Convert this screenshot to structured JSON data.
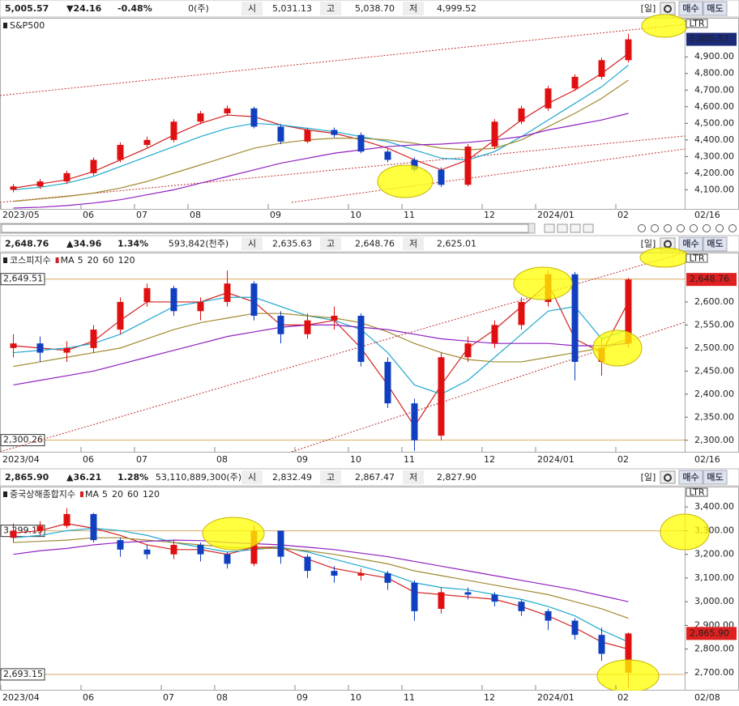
{
  "panels": [
    {
      "header": {
        "price": "5,005.57",
        "change": "▼24.16",
        "rate": "-0.48%",
        "volume": "0(주)",
        "open_label": "시",
        "open": "5,031.13",
        "high_label": "고",
        "high": "5,038.70",
        "low_label": "저",
        "low": "4,999.52",
        "period": "[일]",
        "buy": "매수",
        "sell": "매도",
        "color": "#1a1acc",
        "box_color": "#1c2a7a"
      },
      "chart_data": {
        "type": "candlestick",
        "title": "S&P500",
        "scale_mode": "LTR",
        "last_date": "02/16",
        "categories": [
          "2023/05",
          null,
          null,
          "06",
          null,
          "07",
          null,
          "08",
          null,
          null,
          "09",
          null,
          null,
          "10",
          null,
          "11",
          null,
          null,
          "12",
          null,
          "2024/01",
          null,
          null,
          "02"
        ],
        "open": [
          4100,
          4120,
          4150,
          4200,
          4280,
          4370,
          4400,
          4510,
          4560,
          4590,
          4480,
          4390,
          4460,
          4430,
          4330,
          4280,
          4220,
          4130,
          4360,
          4510,
          4590,
          4710,
          4780,
          4880
        ],
        "high": [
          4135,
          4165,
          4215,
          4295,
          4385,
          4420,
          4525,
          4575,
          4607,
          4600,
          4495,
          4475,
          4475,
          4445,
          4345,
          4295,
          4235,
          4375,
          4525,
          4605,
          4725,
          4795,
          4895,
          5038.7
        ],
        "low": [
          4085,
          4105,
          4135,
          4185,
          4265,
          4355,
          4385,
          4495,
          4545,
          4470,
          4375,
          4380,
          4415,
          4320,
          4265,
          4205,
          4117,
          4120,
          4345,
          4495,
          4575,
          4695,
          4765,
          4865
        ],
        "close": [
          4120,
          4150,
          4200,
          4280,
          4370,
          4400,
          4510,
          4560,
          4590,
          4480,
          4390,
          4460,
          4430,
          4330,
          4280,
          4220,
          4130,
          4360,
          4510,
          4590,
          4710,
          4780,
          4880,
          5005.57
        ],
        "series": [
          {
            "color": "#d42020",
            "values": [
              4110,
              4135,
              4160,
              4210,
              4280,
              4350,
              4430,
              4500,
              4550,
              4540,
              4490,
              4460,
              4440,
              4400,
              4350,
              4280,
              4220,
              4280,
              4400,
              4520,
              4620,
              4700,
              4800,
              4920
            ]
          },
          {
            "color": "#20a8d0",
            "values": [
              4100,
              4115,
              4140,
              4180,
              4240,
              4300,
              4360,
              4420,
              4470,
              4500,
              4490,
              4470,
              4450,
              4420,
              4390,
              4340,
              4290,
              4280,
              4330,
              4420,
              4520,
              4620,
              4720,
              4850
            ]
          },
          {
            "color": "#a08a30",
            "values": [
              4030,
              4045,
              4060,
              4080,
              4110,
              4150,
              4200,
              4250,
              4300,
              4350,
              4380,
              4400,
              4410,
              4410,
              4400,
              4380,
              4350,
              4340,
              4350,
              4400,
              4480,
              4560,
              4650,
              4760
            ]
          },
          {
            "color": "#9020c0",
            "values": [
              3990,
              3995,
              4005,
              4020,
              4040,
              4070,
              4100,
              4140,
              4180,
              4220,
              4260,
              4290,
              4320,
              4340,
              4360,
              4370,
              4375,
              4385,
              4400,
              4420,
              4460,
              4490,
              4520,
              4560
            ]
          }
        ],
        "up_color": "#e01010",
        "down_color": "#1040c0",
        "ylim": [
          3985,
          5135
        ],
        "yticks": [
          {
            "value": 4100,
            "label": "4,100.00"
          },
          {
            "value": 4200,
            "label": "4,200.00"
          },
          {
            "value": 4300,
            "label": "4,300.00"
          },
          {
            "value": 4400,
            "label": "4,400.00"
          },
          {
            "value": 4500,
            "label": "4,500.00"
          },
          {
            "value": 4600,
            "label": "4,600.00"
          },
          {
            "value": 4700,
            "label": "4,700.00"
          },
          {
            "value": 4800,
            "label": "4,800.00"
          },
          {
            "value": 4900,
            "label": "4,900.00"
          }
        ],
        "levels": []
      }
    },
    {
      "header": {
        "price": "2,648.76",
        "change": "▲34.96",
        "rate": "1.34%",
        "volume": "593,842(천주)",
        "open_label": "시",
        "open": "2,635.63",
        "high_label": "고",
        "high": "2,648.76",
        "low_label": "저",
        "low": "2,625.01",
        "period": "[일]",
        "buy": "매수",
        "sell": "매도",
        "color": "#e01010",
        "box_color": "#e02020"
      },
      "chart_data": {
        "type": "candlestick",
        "title": "코스피지수",
        "ma_label": "MA",
        "scale_mode": "LTR",
        "last_date": "02/16",
        "categories": [
          "2023/04",
          null,
          null,
          "06",
          null,
          "07",
          null,
          null,
          "08",
          null,
          null,
          "09",
          null,
          "10",
          null,
          "11",
          null,
          null,
          "12",
          null,
          "2024/01",
          null,
          null,
          "02"
        ],
        "open": [
          2500,
          2510,
          2490,
          2500,
          2540,
          2600,
          2630,
          2580,
          2600,
          2640,
          2570,
          2530,
          2560,
          2570,
          2470,
          2380,
          2310,
          2480,
          2510,
          2550,
          2600,
          2660,
          2470,
          2510
        ],
        "high": [
          2530,
          2525,
          2515,
          2550,
          2610,
          2640,
          2635,
          2610,
          2668,
          2645,
          2580,
          2575,
          2590,
          2575,
          2480,
          2390,
          2490,
          2525,
          2560,
          2610,
          2669,
          2665,
          2520,
          2652
        ],
        "low": [
          2480,
          2470,
          2470,
          2490,
          2530,
          2590,
          2570,
          2560,
          2590,
          2560,
          2510,
          2520,
          2540,
          2460,
          2370,
          2277,
          2300,
          2470,
          2500,
          2540,
          2590,
          2430,
          2440,
          2500
        ],
        "close": [
          2510,
          2490,
          2500,
          2540,
          2600,
          2630,
          2580,
          2600,
          2640,
          2570,
          2530,
          2560,
          2570,
          2470,
          2380,
          2300,
          2480,
          2510,
          2550,
          2600,
          2660,
          2470,
          2500,
          2648.76
        ],
        "series": [
          {
            "name": "5",
            "color": "#d42020",
            "values": [
              2505,
              2500,
              2495,
              2515,
              2560,
              2600,
              2600,
              2600,
              2620,
              2600,
              2550,
              2550,
              2560,
              2500,
              2420,
              2330,
              2420,
              2500,
              2540,
              2590,
              2640,
              2520,
              2490,
              2600
            ]
          },
          {
            "name": "20",
            "color": "#20a8d0",
            "values": [
              2490,
              2495,
              2500,
              2510,
              2530,
              2560,
              2590,
              2600,
              2610,
              2610,
              2590,
              2570,
              2560,
              2540,
              2490,
              2420,
              2400,
              2430,
              2480,
              2530,
              2580,
              2590,
              2520,
              2540
            ]
          },
          {
            "name": "60",
            "color": "#a08a30",
            "values": [
              2460,
              2470,
              2480,
              2490,
              2500,
              2520,
              2540,
              2555,
              2565,
              2575,
              2575,
              2570,
              2565,
              2555,
              2535,
              2510,
              2490,
              2475,
              2470,
              2470,
              2480,
              2490,
              2500,
              2520
            ]
          },
          {
            "name": "120",
            "color": "#9020c0",
            "values": [
              2420,
              2430,
              2440,
              2450,
              2465,
              2480,
              2495,
              2510,
              2525,
              2535,
              2545,
              2550,
              2550,
              2545,
              2540,
              2530,
              2520,
              2515,
              2510,
              2510,
              2510,
              2505,
              2505,
              2510
            ]
          }
        ],
        "up_color": "#e01010",
        "down_color": "#1040c0",
        "ylim": [
          2275,
          2707
        ],
        "yticks": [
          {
            "value": 2300,
            "label": "2,300.00"
          },
          {
            "value": 2350,
            "label": "2,350.00"
          },
          {
            "value": 2400,
            "label": "2,400.00"
          },
          {
            "value": 2450,
            "label": "2,450.00"
          },
          {
            "value": 2500,
            "label": "2,500.00"
          },
          {
            "value": 2550,
            "label": "2,550.00"
          },
          {
            "value": 2600,
            "label": "2,600.00"
          }
        ],
        "levels": [
          {
            "value": 2649.51,
            "label": "2,649.51"
          },
          {
            "value": 2300.26,
            "label": "2,300.26"
          }
        ]
      }
    },
    {
      "header": {
        "price": "2,865.90",
        "change": "▲36.21",
        "rate": "1.28%",
        "volume": "53,110,889,300(주)",
        "open_label": "시",
        "open": "2,832.49",
        "high_label": "고",
        "high": "2,867.47",
        "low_label": "저",
        "low": "2,827.90",
        "period": "[일]",
        "buy": "매수",
        "sell": "매도",
        "color": "#e01010",
        "box_color": "#e02020"
      },
      "chart_data": {
        "type": "candlestick",
        "title": "중국상해종합지수",
        "ma_label": "MA",
        "scale_mode": "LTR",
        "last_date": "02/08",
        "categories": [
          "2023/04",
          null,
          null,
          "06",
          null,
          null,
          "07",
          null,
          "08",
          null,
          null,
          "09",
          null,
          "10",
          null,
          "11",
          null,
          null,
          "12",
          null,
          "2024/01",
          null,
          null,
          "02"
        ],
        "open": [
          3270,
          3300,
          3320,
          3370,
          3260,
          3220,
          3200,
          3240,
          3200,
          3160,
          3300,
          3190,
          3130,
          3110,
          3120,
          3080,
          2970,
          3040,
          3030,
          3000,
          2960,
          2920,
          2860,
          2700
        ],
        "high": [
          3330,
          3340,
          3395,
          3375,
          3270,
          3240,
          3260,
          3250,
          3210,
          3322,
          3300,
          3200,
          3150,
          3140,
          3130,
          3090,
          3060,
          3060,
          3040,
          3010,
          2970,
          2930,
          2890,
          2870
        ],
        "low": [
          3250,
          3280,
          3310,
          3250,
          3190,
          3180,
          3180,
          3170,
          3140,
          3150,
          3160,
          3100,
          3080,
          3090,
          3050,
          2920,
          2950,
          3010,
          2980,
          2940,
          2880,
          2840,
          2750,
          2635
        ],
        "close": [
          3300,
          3320,
          3370,
          3260,
          3220,
          3200,
          3240,
          3200,
          3160,
          3300,
          3190,
          3130,
          3110,
          3120,
          3080,
          2960,
          3040,
          3030,
          3000,
          2960,
          2920,
          2860,
          2780,
          2865.9
        ],
        "series": [
          {
            "name": "5",
            "color": "#d42020",
            "values": [
              3290,
              3300,
              3330,
              3310,
              3280,
              3240,
              3220,
              3220,
              3200,
              3230,
              3230,
              3180,
              3140,
              3120,
              3100,
              3040,
              3030,
              3020,
              3010,
              2980,
              2940,
              2890,
              2830,
              2800
            ]
          },
          {
            "name": "20",
            "color": "#20a8d0",
            "values": [
              3270,
              3280,
              3300,
              3310,
              3300,
              3280,
              3250,
              3230,
              3210,
              3220,
              3230,
              3210,
              3180,
              3150,
              3120,
              3080,
              3060,
              3050,
              3030,
              3010,
              2980,
              2940,
              2880,
              2830
            ]
          },
          {
            "name": "60",
            "color": "#a08a30",
            "values": [
              3250,
              3255,
              3260,
              3270,
              3270,
              3260,
              3250,
              3240,
              3230,
              3225,
              3225,
              3215,
              3200,
              3180,
              3160,
              3130,
              3110,
              3090,
              3070,
              3050,
              3030,
              3000,
              2970,
              2930
            ]
          },
          {
            "name": "120",
            "color": "#9020c0",
            "values": [
              3200,
              3215,
              3225,
              3240,
              3250,
              3255,
              3260,
              3258,
              3250,
              3245,
              3240,
              3230,
              3220,
              3205,
              3190,
              3170,
              3150,
              3130,
              3110,
              3090,
              3070,
              3050,
              3025,
              3000
            ]
          }
        ],
        "up_color": "#e01010",
        "down_color": "#1040c0",
        "ylim": [
          2628,
          3486
        ],
        "yticks": [
          {
            "value": 2700,
            "label": "2,700.00"
          },
          {
            "value": 2800,
            "label": "2,800.00"
          },
          {
            "value": 2900,
            "label": "2,900.00"
          },
          {
            "value": 3000,
            "label": "3,000.00"
          },
          {
            "value": 3100,
            "label": "3,100.00"
          },
          {
            "value": 3200,
            "label": "3,200.00"
          },
          {
            "value": 3300,
            "label": "3,300.00"
          },
          {
            "value": 3400,
            "label": "3,400.00"
          }
        ],
        "levels": [
          {
            "value": 3299.19,
            "label": "3,299.19"
          },
          {
            "value": 2693.15,
            "label": "2,693.15"
          }
        ]
      }
    }
  ]
}
